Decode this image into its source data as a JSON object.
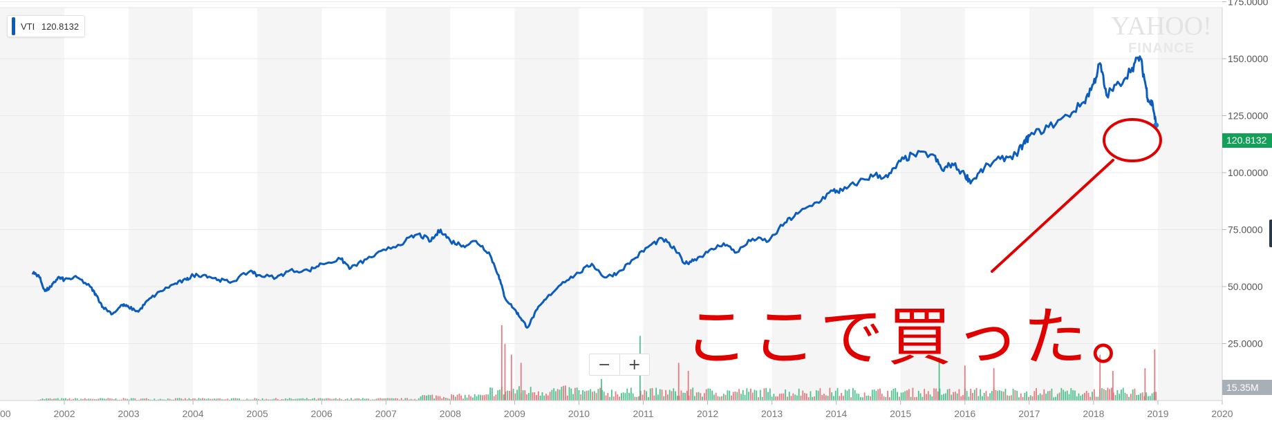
{
  "legend": {
    "symbol": "VTI",
    "value": "120.8132"
  },
  "watermark": {
    "line1": "YAHOO!",
    "line2": "FINANCE"
  },
  "last_price_label": "120.8132",
  "volume_label": "15.35M",
  "zoom": {
    "minus": "−",
    "plus": "+"
  },
  "annotation": {
    "text": "ここで買った。"
  },
  "colors": {
    "line": "#0b5cbd",
    "up_volume": "#2fb77b",
    "down_volume": "#e4646a",
    "annotation": "#e00000",
    "price_badge": "#15a05a"
  },
  "chart_data": {
    "type": "line",
    "title": "",
    "series": [
      {
        "name": "VTI",
        "points": [
          [
            2001.5,
            56
          ],
          [
            2001.6,
            55
          ],
          [
            2001.7,
            48
          ],
          [
            2001.8,
            50
          ],
          [
            2001.9,
            54
          ],
          [
            2002.0,
            53
          ],
          [
            2002.2,
            54
          ],
          [
            2002.4,
            50
          ],
          [
            2002.5,
            46
          ],
          [
            2002.6,
            41
          ],
          [
            2002.75,
            38
          ],
          [
            2002.9,
            42
          ],
          [
            2003.0,
            41
          ],
          [
            2003.15,
            39
          ],
          [
            2003.3,
            44
          ],
          [
            2003.5,
            48
          ],
          [
            2003.7,
            51
          ],
          [
            2003.9,
            53
          ],
          [
            2004.0,
            55
          ],
          [
            2004.2,
            55
          ],
          [
            2004.4,
            53
          ],
          [
            2004.6,
            52
          ],
          [
            2004.9,
            57
          ],
          [
            2005.0,
            55
          ],
          [
            2005.3,
            54
          ],
          [
            2005.5,
            57
          ],
          [
            2005.8,
            57
          ],
          [
            2006.0,
            60
          ],
          [
            2006.3,
            62
          ],
          [
            2006.45,
            58
          ],
          [
            2006.7,
            62
          ],
          [
            2007.0,
            66
          ],
          [
            2007.3,
            70
          ],
          [
            2007.5,
            73
          ],
          [
            2007.7,
            70
          ],
          [
            2007.85,
            75
          ],
          [
            2008.0,
            70
          ],
          [
            2008.2,
            68
          ],
          [
            2008.4,
            70
          ],
          [
            2008.6,
            65
          ],
          [
            2008.75,
            55
          ],
          [
            2008.85,
            45
          ],
          [
            2009.0,
            40
          ],
          [
            2009.1,
            36
          ],
          [
            2009.2,
            32
          ],
          [
            2009.35,
            40
          ],
          [
            2009.5,
            45
          ],
          [
            2009.75,
            52
          ],
          [
            2010.0,
            56
          ],
          [
            2010.2,
            60
          ],
          [
            2010.4,
            54
          ],
          [
            2010.6,
            56
          ],
          [
            2010.85,
            62
          ],
          [
            2011.1,
            68
          ],
          [
            2011.3,
            71
          ],
          [
            2011.5,
            66
          ],
          [
            2011.65,
            60
          ],
          [
            2011.8,
            62
          ],
          [
            2012.0,
            65
          ],
          [
            2012.25,
            69
          ],
          [
            2012.45,
            65
          ],
          [
            2012.7,
            71
          ],
          [
            2012.95,
            70
          ],
          [
            2013.2,
            78
          ],
          [
            2013.4,
            82
          ],
          [
            2013.7,
            87
          ],
          [
            2013.95,
            92
          ],
          [
            2014.1,
            92
          ],
          [
            2014.35,
            96
          ],
          [
            2014.6,
            99
          ],
          [
            2014.8,
            98
          ],
          [
            2015.0,
            105
          ],
          [
            2015.2,
            108
          ],
          [
            2015.5,
            108
          ],
          [
            2015.65,
            101
          ],
          [
            2015.8,
            104
          ],
          [
            2016.0,
            99
          ],
          [
            2016.1,
            96
          ],
          [
            2016.3,
            102
          ],
          [
            2016.55,
            106
          ],
          [
            2016.8,
            108
          ],
          [
            2016.9,
            112
          ],
          [
            2017.0,
            116
          ],
          [
            2017.3,
            120
          ],
          [
            2017.6,
            125
          ],
          [
            2017.85,
            131
          ],
          [
            2018.0,
            139
          ],
          [
            2018.1,
            148
          ],
          [
            2018.2,
            134
          ],
          [
            2018.4,
            139
          ],
          [
            2018.6,
            146
          ],
          [
            2018.72,
            151
          ],
          [
            2018.8,
            140
          ],
          [
            2018.85,
            132
          ],
          [
            2018.92,
            130
          ],
          [
            2018.97,
            121
          ]
        ]
      }
    ],
    "last_point": [
      2018.97,
      120.8132
    ],
    "xlim": [
      2001.0,
      2020.0
    ],
    "ylim": [
      0,
      175
    ],
    "xticks": [
      2002,
      2003,
      2004,
      2005,
      2006,
      2007,
      2008,
      2009,
      2010,
      2011,
      2012,
      2013,
      2014,
      2015,
      2016,
      2017,
      2018,
      2019,
      2020
    ],
    "xtick_labels": [
      "2002",
      "2003",
      "2004",
      "2005",
      "2006",
      "2007",
      "2008",
      "2009",
      "2010",
      "2011",
      "2012",
      "2013",
      "2014",
      "2015",
      "2016",
      "2017",
      "2018",
      "2019",
      "2020"
    ],
    "left_edge_label": "00",
    "yticks": [
      25,
      50,
      75,
      100,
      125,
      150,
      175
    ],
    "ytick_labels": [
      "25.0000",
      "50.0000",
      "75.0000",
      "100.0000",
      "125.0000",
      "150.0000",
      "175.0000"
    ],
    "volume_spikes": [
      {
        "x": 2008.8,
        "v": 28,
        "up": false
      },
      {
        "x": 2008.85,
        "v": 21,
        "up": false
      },
      {
        "x": 2008.95,
        "v": 17,
        "up": false
      },
      {
        "x": 2009.1,
        "v": 14,
        "up": false
      },
      {
        "x": 2010.35,
        "v": 8,
        "up": true
      },
      {
        "x": 2010.95,
        "v": 24,
        "up": true
      },
      {
        "x": 2011.55,
        "v": 14,
        "up": false
      },
      {
        "x": 2011.7,
        "v": 11,
        "up": false
      },
      {
        "x": 2015.6,
        "v": 16,
        "up": true
      },
      {
        "x": 2016.0,
        "v": 13,
        "up": false
      },
      {
        "x": 2016.45,
        "v": 12,
        "up": false
      },
      {
        "x": 2018.1,
        "v": 17,
        "up": false
      },
      {
        "x": 2018.3,
        "v": 11,
        "up": false
      },
      {
        "x": 2018.8,
        "v": 12,
        "up": false
      },
      {
        "x": 2018.95,
        "v": 19,
        "up": false
      }
    ],
    "grid": true
  }
}
